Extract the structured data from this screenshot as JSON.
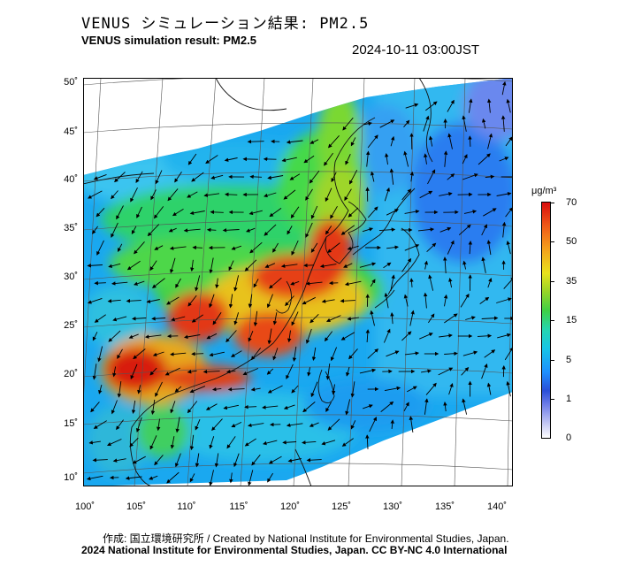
{
  "title_jp": "VENUS シミュレーション結果: PM2.5",
  "title_en": "VENUS simulation result: PM2.5",
  "timestamp": "2024-10-11 03:00JST",
  "lat_labels": [
    "50˚",
    "45˚",
    "40˚",
    "35˚",
    "30˚",
    "25˚",
    "20˚",
    "15˚",
    "10˚"
  ],
  "lon_labels": [
    "100˚",
    "105˚",
    "110˚",
    "115˚",
    "120˚",
    "125˚",
    "130˚",
    "135˚",
    "140˚"
  ],
  "colorbar": {
    "unit": "μg/m³",
    "labels": [
      "70",
      "50",
      "35",
      "15",
      "5",
      "1",
      "0"
    ],
    "colors": [
      "#ffffff",
      "#2b4fd8",
      "#17c5e6",
      "#3fd045",
      "#e8e21c",
      "#f05a18",
      "#d80d0d"
    ]
  },
  "credit_line_1": "作成: 国立環境研究所 / Created by National Institute for Environmental Studies, Japan.",
  "credit_line_2": "2024 National Institute for Environmental Studies, Japan. CC BY-NC 4.0 International"
}
